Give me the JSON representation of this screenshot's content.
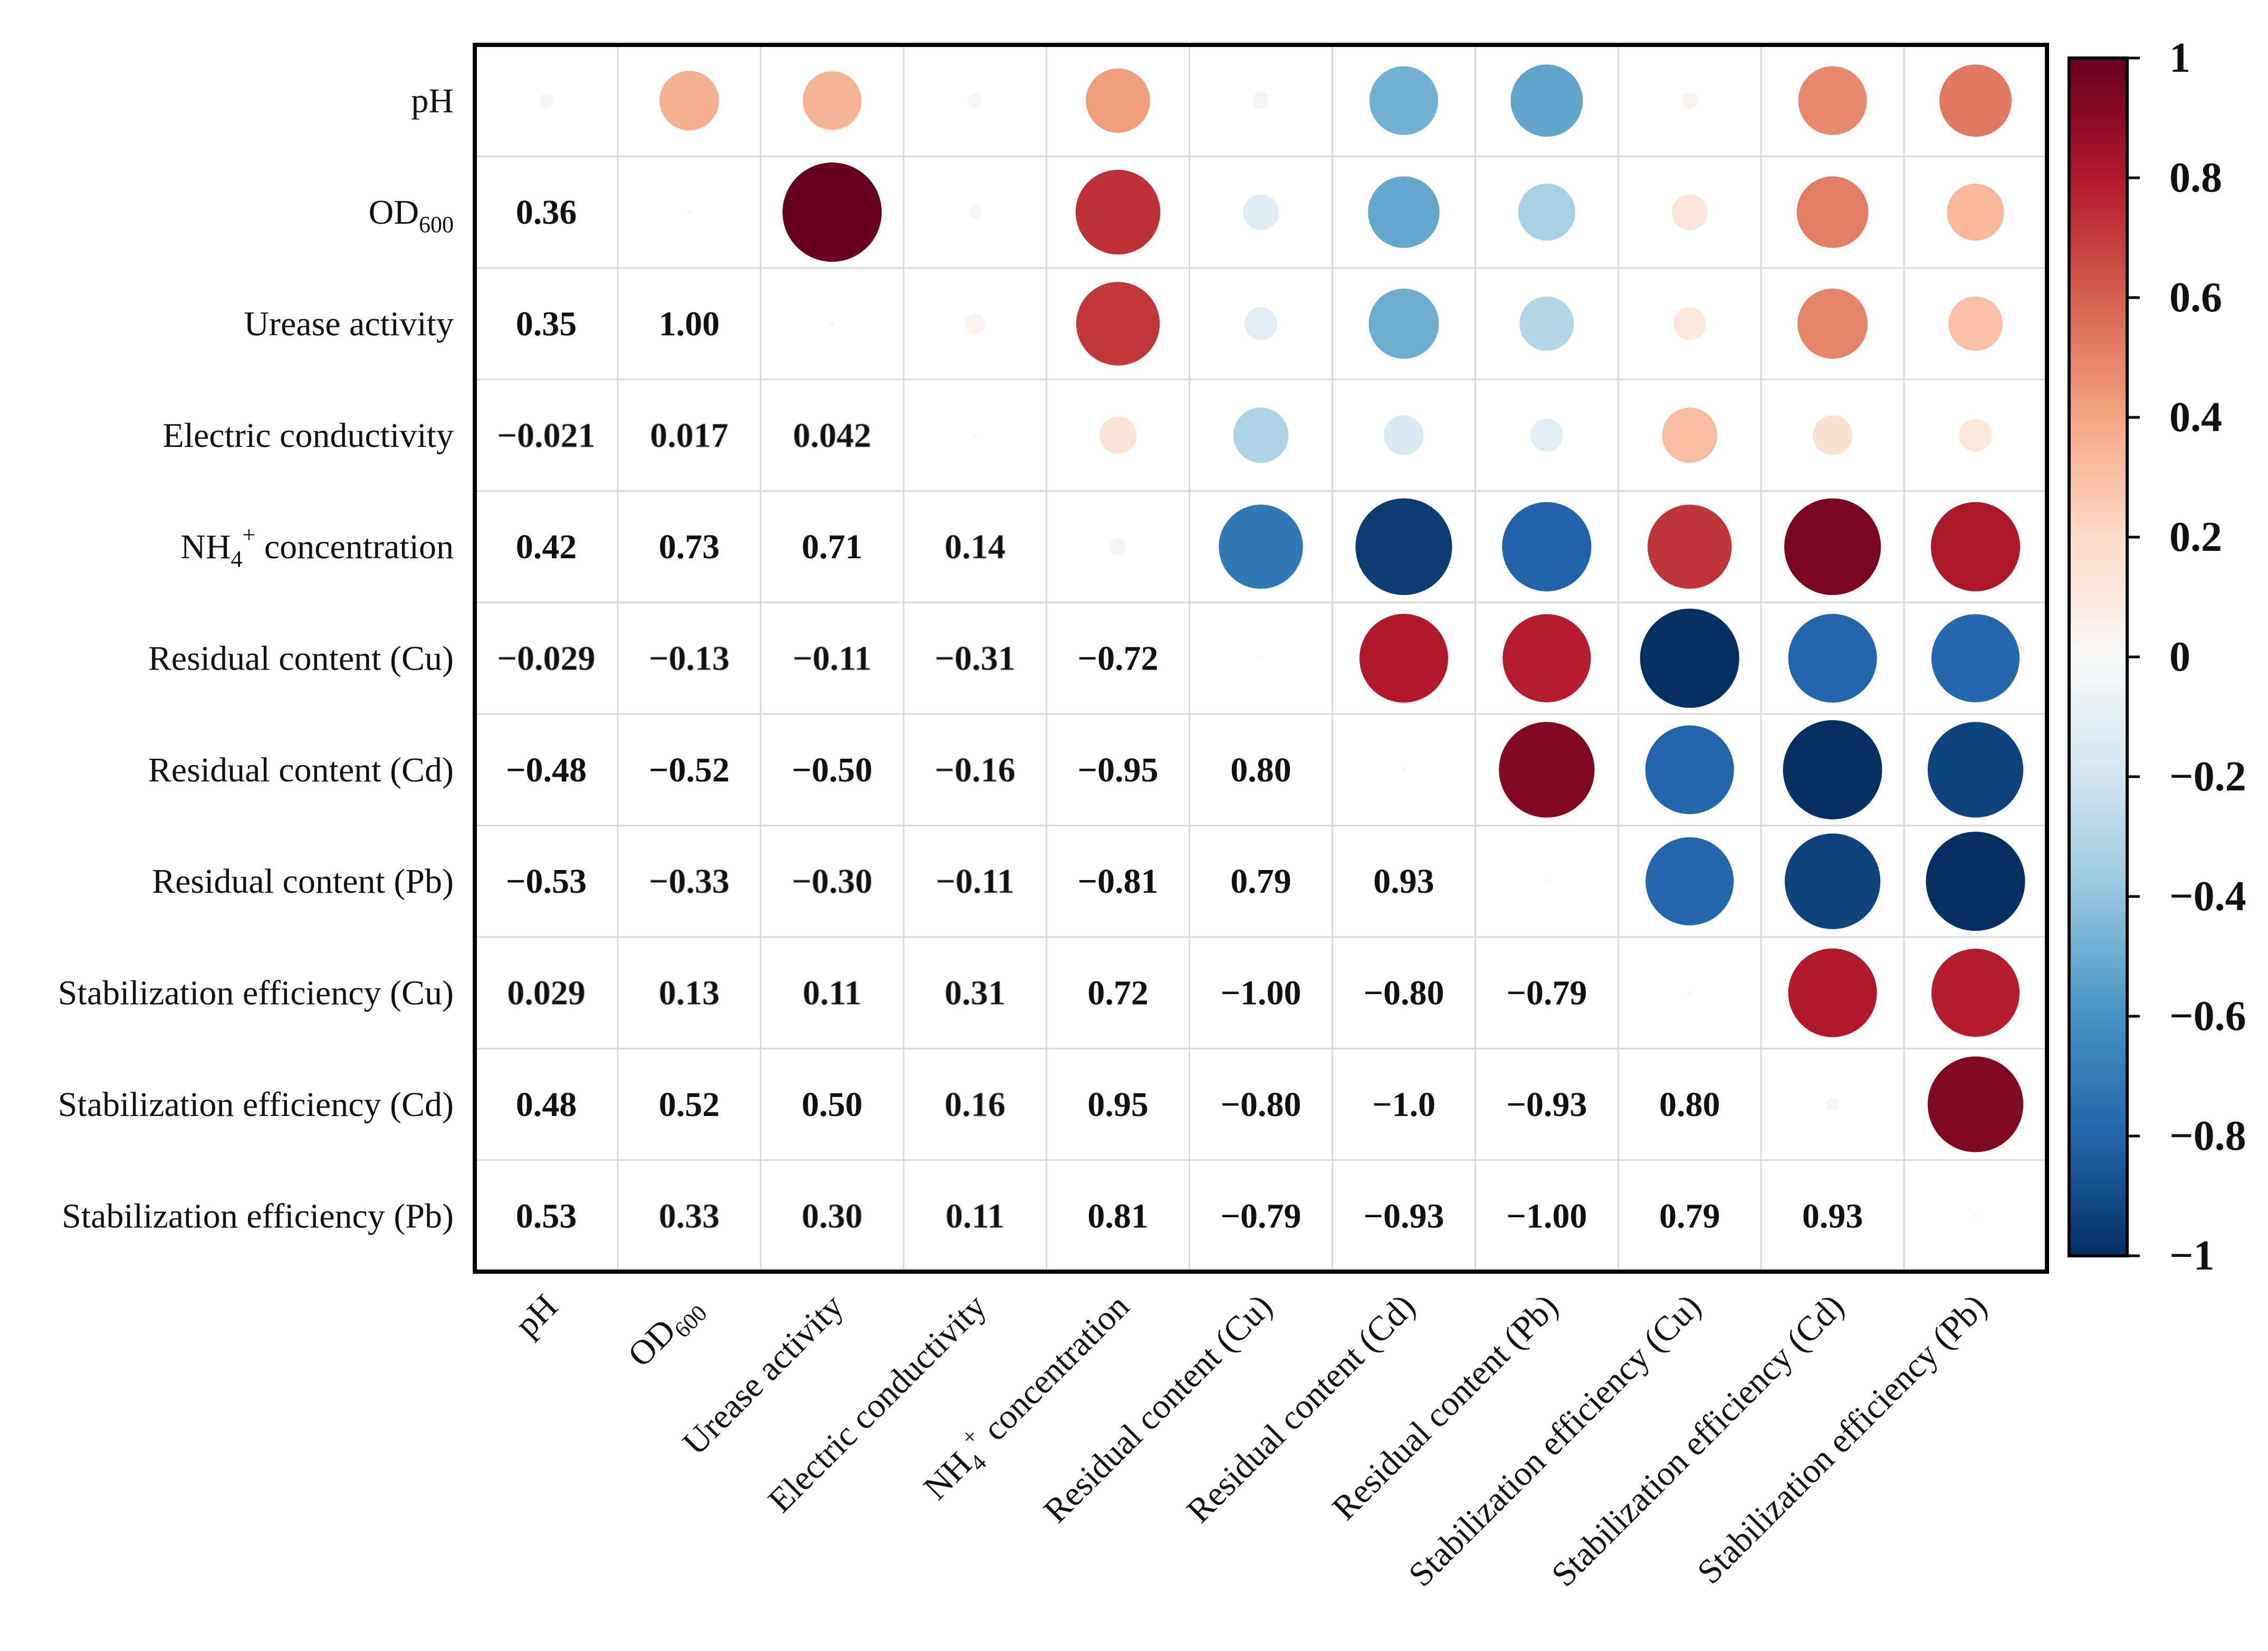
{
  "chart_data": {
    "type": "heatmap",
    "title": "",
    "display": "lower: coefficient text; upper: circles sized and coloured by coefficient",
    "variables": [
      {
        "name": "pH",
        "main": "pH",
        "sub": "",
        "sup": ""
      },
      {
        "name": "OD600",
        "main": "OD",
        "sub": "600",
        "sup": ""
      },
      {
        "name": "Urease activity",
        "main": "Urease activity",
        "sub": "",
        "sup": ""
      },
      {
        "name": "Electric conductivity",
        "main": "Electric conductivity",
        "sub": "",
        "sup": ""
      },
      {
        "name": "NH4+ concentration",
        "main": "NH",
        "sub": "4",
        "sup": "+",
        "rest": " concentration"
      },
      {
        "name": "Residual content (Cu)",
        "main": "Residual content (Cu)",
        "sub": "",
        "sup": ""
      },
      {
        "name": "Residual content (Cd)",
        "main": "Residual content (Cd)",
        "sub": "",
        "sup": ""
      },
      {
        "name": "Residual content (Pb)",
        "main": "Residual content (Pb)",
        "sub": "",
        "sup": ""
      },
      {
        "name": "Stabilization efficiency (Cu)",
        "main": "Stabilization efficiency (Cu)",
        "sub": "",
        "sup": ""
      },
      {
        "name": "Stabilization efficiency (Cd)",
        "main": "Stabilization  efficiency (Cd)",
        "sub": "",
        "sup": ""
      },
      {
        "name": "Stabilization efficiency (Pb)",
        "main": "Stabilization  efficiency (Pb)",
        "sub": "",
        "sup": ""
      }
    ],
    "lower_triangle_labels": [
      [],
      [
        "0.36"
      ],
      [
        "0.35",
        "1.00"
      ],
      [
        "−0.021",
        "0.017",
        "0.042"
      ],
      [
        "0.42",
        "0.73",
        "0.71",
        "0.14"
      ],
      [
        "−0.029",
        "−0.13",
        "−0.11",
        "−0.31",
        "−0.72"
      ],
      [
        "−0.48",
        "−0.52",
        "−0.50",
        "−0.16",
        "−0.95",
        "0.80"
      ],
      [
        "−0.53",
        "−0.33",
        "−0.30",
        "−0.11",
        "−0.81",
        "0.79",
        "0.93"
      ],
      [
        "0.029",
        "0.13",
        "0.11",
        "0.31",
        "0.72",
        "−1.00",
        "−0.80",
        "−0.79"
      ],
      [
        "0.48",
        "0.52",
        "0.50",
        "0.16",
        "0.95",
        "−0.80",
        "−1.0",
        "−0.93",
        "0.80"
      ],
      [
        "0.53",
        "0.33",
        "0.30",
        "0.11",
        "0.81",
        "−0.79",
        "−0.93",
        "−1.00",
        "0.79",
        "0.93"
      ]
    ],
    "diagonal_circles": [
      0.02,
      0,
      0,
      0,
      0.03,
      0,
      0,
      0,
      0,
      0.02,
      0
    ],
    "colorbar": {
      "range": [
        -1,
        1
      ],
      "tick_labels": [
        "1",
        "0.8",
        "0.6",
        "0.4",
        "0.2",
        "0",
        "−0.2",
        "−0.4",
        "−0.6",
        "−0.8",
        "−1"
      ],
      "colors": [
        "#67001f",
        "#b2182b",
        "#d6604d",
        "#f4a582",
        "#fddbc7",
        "#f7f7f7",
        "#d1e5f0",
        "#92c5de",
        "#4393c3",
        "#2166ac",
        "#053061"
      ]
    }
  }
}
